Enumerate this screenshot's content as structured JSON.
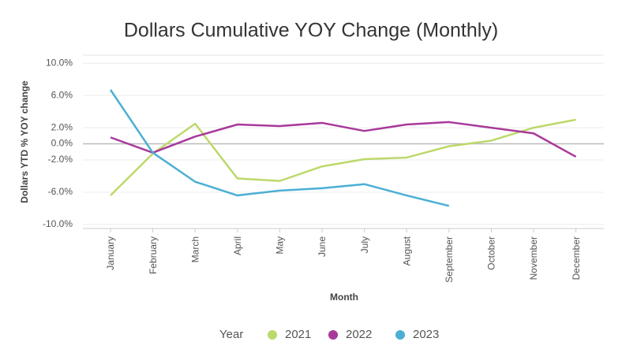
{
  "chart_data": {
    "type": "line",
    "title": "Dollars Cumulative YOY Change (Monthly)",
    "x_label": "Month",
    "y_label": "Dollars YTD % YOY change",
    "legend_title": "Year",
    "categories": [
      "January",
      "February",
      "March",
      "April",
      "May",
      "June",
      "July",
      "August",
      "September",
      "October",
      "November",
      "December"
    ],
    "series": [
      {
        "name": "2021",
        "color": "#bcd96b",
        "values": [
          -6.4,
          -1.2,
          2.5,
          -4.3,
          -4.6,
          -2.8,
          -1.9,
          -1.7,
          -0.3,
          0.4,
          2.0,
          3.0
        ]
      },
      {
        "name": "2022",
        "color": "#a8399a",
        "values": [
          0.8,
          -1.1,
          0.9,
          2.4,
          2.2,
          2.6,
          1.6,
          2.4,
          2.7,
          2.0,
          1.3,
          -1.6
        ]
      },
      {
        "name": "2023",
        "color": "#4bafd4",
        "values": [
          6.7,
          -1.1,
          -4.7,
          -6.4,
          -5.8,
          -5.5,
          -5.0,
          -6.4,
          -7.7,
          null,
          null,
          null
        ]
      }
    ],
    "ylim": [
      -10.5,
      11
    ],
    "yticks": [
      {
        "value": 10,
        "label": "10.0%"
      },
      {
        "value": 6,
        "label": "6.0%"
      },
      {
        "value": 2,
        "label": "2.0%"
      },
      {
        "value": 0,
        "label": "0.0%"
      },
      {
        "value": -2,
        "label": "-2.0%"
      },
      {
        "value": -6,
        "label": "-6.0%"
      },
      {
        "value": -10,
        "label": "-10.0%"
      }
    ],
    "grid": true
  }
}
